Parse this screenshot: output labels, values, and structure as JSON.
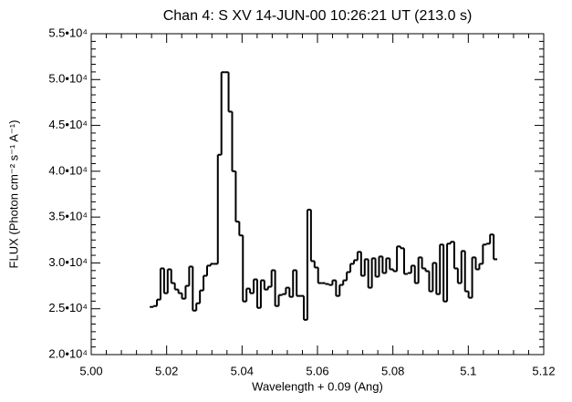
{
  "chart_data": {
    "type": "step",
    "title": "Chan 4: S XV  14-JUN-00  10:26:21 UT  (213.0 s)",
    "x_label": "Wavelength + 0.09 (Ang)",
    "y_label": "FLUX (Photon cm⁻²  s⁻¹  A⁻¹)",
    "color": "#000000",
    "x": [
      5.016,
      5.01695,
      5.0179,
      5.01885,
      5.0198,
      5.02075,
      5.0217,
      5.02265,
      5.0236,
      5.02455,
      5.0255,
      5.02645,
      5.0274,
      5.02835,
      5.0293,
      5.03025,
      5.0312,
      5.03215,
      5.0331,
      5.03405,
      5.035,
      5.03595,
      5.0369,
      5.03785,
      5.0388,
      5.03975,
      5.0407,
      5.04165,
      5.0426,
      5.04355,
      5.0445,
      5.04545,
      5.0464,
      5.04735,
      5.0483,
      5.04925,
      5.0502,
      5.05115,
      5.0521,
      5.05305,
      5.054,
      5.05495,
      5.0559,
      5.05685,
      5.0578,
      5.05875,
      5.0597,
      5.06065,
      5.0616,
      5.06255,
      5.0635,
      5.06445,
      5.0654,
      5.06635,
      5.0673,
      5.06825,
      5.0692,
      5.07015,
      5.0711,
      5.07205,
      5.073,
      5.07395,
      5.0749,
      5.07585,
      5.0768,
      5.07775,
      5.0787,
      5.07965,
      5.0806,
      5.08155,
      5.0825,
      5.08345,
      5.0844,
      5.08535,
      5.0863,
      5.08725,
      5.0882,
      5.08915,
      5.0901,
      5.09105,
      5.092,
      5.09295,
      5.0939,
      5.09485,
      5.0958,
      5.09675,
      5.0977,
      5.09865,
      5.0996,
      5.10055,
      5.1015,
      5.10245,
      5.1034,
      5.10435,
      5.1053,
      5.10625,
      5.1072
    ],
    "values": [
      25200,
      25300,
      26000,
      29400,
      26700,
      29300,
      27800,
      27100,
      26700,
      26100,
      27500,
      29600,
      24800,
      25600,
      27000,
      28600,
      29700,
      29900,
      29900,
      41800,
      50800,
      50800,
      46500,
      40000,
      34500,
      33000,
      25800,
      27200,
      26700,
      28200,
      25100,
      28100,
      27100,
      27400,
      29200,
      25300,
      26500,
      26600,
      27300,
      26300,
      29200,
      26400,
      26400,
      23800,
      35800,
      30200,
      29500,
      27800,
      27800,
      27700,
      27600,
      28100,
      26400,
      27600,
      28100,
      29000,
      29900,
      30300,
      31200,
      28600,
      30400,
      27300,
      30500,
      28500,
      30700,
      28900,
      30500,
      29300,
      29100,
      31800,
      31600,
      28800,
      28900,
      29700,
      27800,
      30600,
      29400,
      29100,
      26900,
      30000,
      26600,
      32000,
      25800,
      32100,
      32300,
      29400,
      27800,
      31300,
      26900,
      26200,
      30600,
      29300,
      29900,
      32000,
      32100,
      33100,
      30400
    ],
    "xlim": [
      5.0,
      5.12
    ],
    "xticks": [
      {
        "value": 5.0,
        "label": "5.00"
      },
      5.02,
      5.04,
      5.06,
      5.08,
      5.1,
      5.12
    ],
    "ylim": [
      20000,
      55000
    ],
    "yticks": [
      {
        "value": 20000,
        "label": "2.0•10⁴"
      },
      {
        "value": 25000,
        "label": "2.5•10⁴"
      },
      {
        "value": 30000,
        "label": "3.0•10⁴"
      },
      {
        "value": 35000,
        "label": "3.5•10⁴"
      },
      {
        "value": 40000,
        "label": "4.0•10⁴"
      },
      {
        "value": 45000,
        "label": "4.5•10⁴"
      },
      {
        "value": 50000,
        "label": "5.0•10⁴"
      },
      {
        "value": 55000,
        "label": "5.5•10⁴"
      }
    ],
    "xminor": 4,
    "yminor": 5
  }
}
